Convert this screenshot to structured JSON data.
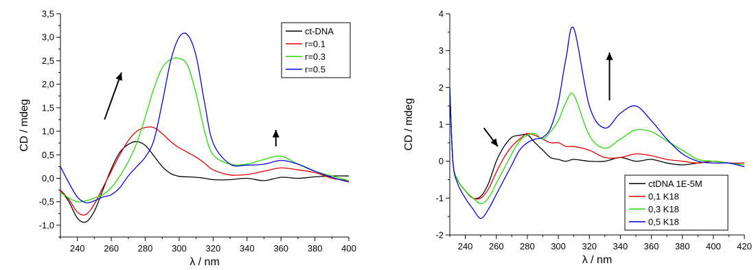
{
  "chart_data": [
    {
      "type": "line",
      "xlabel": "λ / nm",
      "ylabel": "CD / mdeg",
      "xlim": [
        230,
        400
      ],
      "ylim": [
        -1.25,
        3.5
      ],
      "xticks": [
        240,
        260,
        280,
        300,
        320,
        340,
        360,
        380,
        400
      ],
      "xticklabels": [
        "240",
        "260",
        "280",
        "300",
        "320",
        "340",
        "360",
        "380",
        "400"
      ],
      "yticks": [
        -1.0,
        -0.5,
        0.0,
        0.5,
        1.0,
        1.5,
        2.0,
        2.5,
        3.0,
        3.5
      ],
      "yticklabels": [
        "-1,0",
        "-0,5",
        "0,0",
        "0,5",
        "1,0",
        "1,5",
        "2,0",
        "2,5",
        "3,0",
        "3,5"
      ],
      "legend_position": "top-right",
      "grid": false,
      "series": [
        {
          "name": "ct-DNA",
          "color": "#000000",
          "x": [
            230,
            235,
            240,
            245,
            250,
            255,
            260,
            265,
            270,
            275,
            280,
            285,
            290,
            295,
            300,
            305,
            310,
            315,
            320,
            330,
            340,
            350,
            360,
            370,
            380,
            390,
            400
          ],
          "y": [
            -0.25,
            -0.5,
            -0.85,
            -0.93,
            -0.7,
            -0.25,
            0.2,
            0.55,
            0.72,
            0.78,
            0.7,
            0.48,
            0.25,
            0.1,
            0.04,
            0.03,
            0.02,
            0.0,
            -0.03,
            -0.03,
            0.0,
            -0.05,
            0.02,
            0.0,
            0.03,
            0.05,
            0.05
          ]
        },
        {
          "name": "r=0.1",
          "color": "#e00000",
          "x": [
            230,
            235,
            240,
            245,
            250,
            255,
            260,
            265,
            270,
            275,
            280,
            285,
            290,
            295,
            300,
            305,
            310,
            315,
            320,
            330,
            340,
            350,
            360,
            370,
            380,
            390,
            400
          ],
          "y": [
            -0.25,
            -0.45,
            -0.72,
            -0.77,
            -0.55,
            -0.2,
            0.15,
            0.5,
            0.8,
            1.0,
            1.08,
            1.08,
            0.95,
            0.78,
            0.65,
            0.55,
            0.45,
            0.32,
            0.18,
            0.07,
            0.08,
            0.15,
            0.22,
            0.18,
            0.12,
            0.0,
            -0.05
          ]
        },
        {
          "name": "r=0.3",
          "color": "#22dd00",
          "x": [
            230,
            235,
            240,
            245,
            250,
            255,
            260,
            265,
            270,
            275,
            280,
            285,
            290,
            295,
            300,
            305,
            310,
            315,
            320,
            330,
            340,
            350,
            360,
            370,
            380,
            390,
            400
          ],
          "y": [
            -0.3,
            -0.42,
            -0.5,
            -0.48,
            -0.42,
            -0.35,
            -0.2,
            0.05,
            0.35,
            0.75,
            1.3,
            1.9,
            2.35,
            2.53,
            2.55,
            2.4,
            1.8,
            1.0,
            0.5,
            0.3,
            0.3,
            0.4,
            0.47,
            0.3,
            0.15,
            0.05,
            -0.05
          ]
        },
        {
          "name": "r=0.5",
          "color": "#0000dd",
          "x": [
            230,
            235,
            240,
            245,
            250,
            255,
            260,
            265,
            270,
            275,
            280,
            285,
            290,
            295,
            300,
            305,
            310,
            315,
            320,
            330,
            340,
            350,
            360,
            370,
            380,
            390,
            400
          ],
          "y": [
            0.25,
            -0.1,
            -0.4,
            -0.52,
            -0.48,
            -0.4,
            -0.35,
            -0.2,
            0.05,
            0.25,
            0.45,
            0.8,
            1.6,
            2.5,
            3.0,
            3.05,
            2.6,
            1.6,
            0.75,
            0.3,
            0.28,
            0.3,
            0.38,
            0.3,
            0.15,
            0.02,
            -0.08
          ]
        }
      ],
      "annotations": [
        {
          "type": "arrow",
          "direction": "up-right",
          "from": [
            256,
            1.25
          ],
          "to": [
            266,
            2.25
          ]
        },
        {
          "type": "arrow",
          "direction": "up",
          "from": [
            357,
            0.68
          ],
          "to": [
            357,
            1.03
          ]
        }
      ]
    },
    {
      "type": "line",
      "xlabel": "λ / nm",
      "ylabel": "CD / mdeg",
      "xlim": [
        230,
        420
      ],
      "ylim": [
        -2,
        4
      ],
      "xticks": [
        240,
        260,
        280,
        300,
        320,
        340,
        360,
        380,
        400,
        420
      ],
      "xticklabels": [
        "240",
        "260",
        "280",
        "300",
        "320",
        "340",
        "360",
        "380",
        "400",
        "420"
      ],
      "yticks": [
        -2,
        -1,
        0,
        1,
        2,
        3,
        4
      ],
      "yticklabels": [
        "-2",
        "-1",
        "0",
        "1",
        "2",
        "3",
        "4"
      ],
      "legend_position": "bottom-right",
      "grid": false,
      "series": [
        {
          "name": "ctDNA 1E-5M",
          "color": "#000000",
          "x": [
            230,
            232,
            235,
            240,
            245,
            250,
            255,
            260,
            265,
            270,
            275,
            280,
            285,
            290,
            295,
            300,
            305,
            310,
            320,
            330,
            340,
            350,
            360,
            370,
            380,
            390,
            400,
            410,
            420
          ],
          "y": [
            2.0,
            0.0,
            -0.5,
            -0.8,
            -1.0,
            -0.95,
            -0.6,
            0.0,
            0.4,
            0.65,
            0.7,
            0.72,
            0.5,
            0.3,
            0.1,
            0.05,
            0.0,
            0.05,
            0.0,
            0.0,
            0.1,
            0.0,
            0.05,
            -0.05,
            -0.1,
            -0.05,
            0.0,
            -0.05,
            -0.05
          ]
        },
        {
          "name": "0,1 K18",
          "color": "#e00000",
          "x": [
            230,
            232,
            235,
            240,
            245,
            250,
            255,
            260,
            265,
            270,
            275,
            280,
            285,
            290,
            295,
            300,
            305,
            310,
            320,
            330,
            340,
            350,
            360,
            370,
            380,
            390,
            400,
            410,
            420
          ],
          "y": [
            2.0,
            0.0,
            -0.5,
            -0.8,
            -1.0,
            -1.0,
            -0.75,
            -0.3,
            0.1,
            0.4,
            0.6,
            0.75,
            0.7,
            0.6,
            0.5,
            0.5,
            0.4,
            0.4,
            0.3,
            0.1,
            0.1,
            0.2,
            0.15,
            0.05,
            0.0,
            -0.05,
            0.0,
            -0.05,
            -0.05
          ]
        },
        {
          "name": "0,3 K18",
          "color": "#22dd00",
          "x": [
            230,
            232,
            235,
            240,
            245,
            250,
            255,
            260,
            265,
            270,
            275,
            280,
            285,
            290,
            295,
            300,
            305,
            310,
            320,
            330,
            340,
            350,
            360,
            370,
            380,
            390,
            400,
            410,
            420
          ],
          "y": [
            2.0,
            0.0,
            -0.5,
            -0.8,
            -1.0,
            -1.15,
            -1.0,
            -0.6,
            -0.2,
            0.2,
            0.55,
            0.7,
            0.75,
            0.6,
            0.8,
            1.1,
            1.6,
            1.8,
            0.7,
            0.35,
            0.6,
            0.85,
            0.8,
            0.55,
            0.3,
            0.05,
            0.0,
            -0.05,
            -0.1
          ]
        },
        {
          "name": "0,5 K18",
          "color": "#0000dd",
          "x": [
            230,
            232,
            235,
            240,
            245,
            250,
            255,
            260,
            265,
            270,
            275,
            280,
            285,
            290,
            295,
            300,
            305,
            310,
            320,
            330,
            340,
            350,
            360,
            370,
            380,
            390,
            400,
            410,
            420
          ],
          "y": [
            2.0,
            0.0,
            -0.6,
            -1.0,
            -1.3,
            -1.55,
            -1.3,
            -0.9,
            -0.5,
            -0.1,
            0.3,
            0.5,
            0.6,
            0.65,
            0.9,
            1.6,
            2.8,
            3.6,
            1.5,
            0.9,
            1.3,
            1.5,
            1.1,
            0.6,
            0.2,
            0.0,
            -0.05,
            -0.05,
            -0.15
          ]
        }
      ],
      "annotations": [
        {
          "type": "arrow",
          "direction": "down-right",
          "from": [
            252,
            0.9
          ],
          "to": [
            261,
            0.4
          ]
        },
        {
          "type": "arrow",
          "direction": "up",
          "from": [
            333,
            1.65
          ],
          "to": [
            333,
            2.95
          ]
        }
      ]
    }
  ]
}
